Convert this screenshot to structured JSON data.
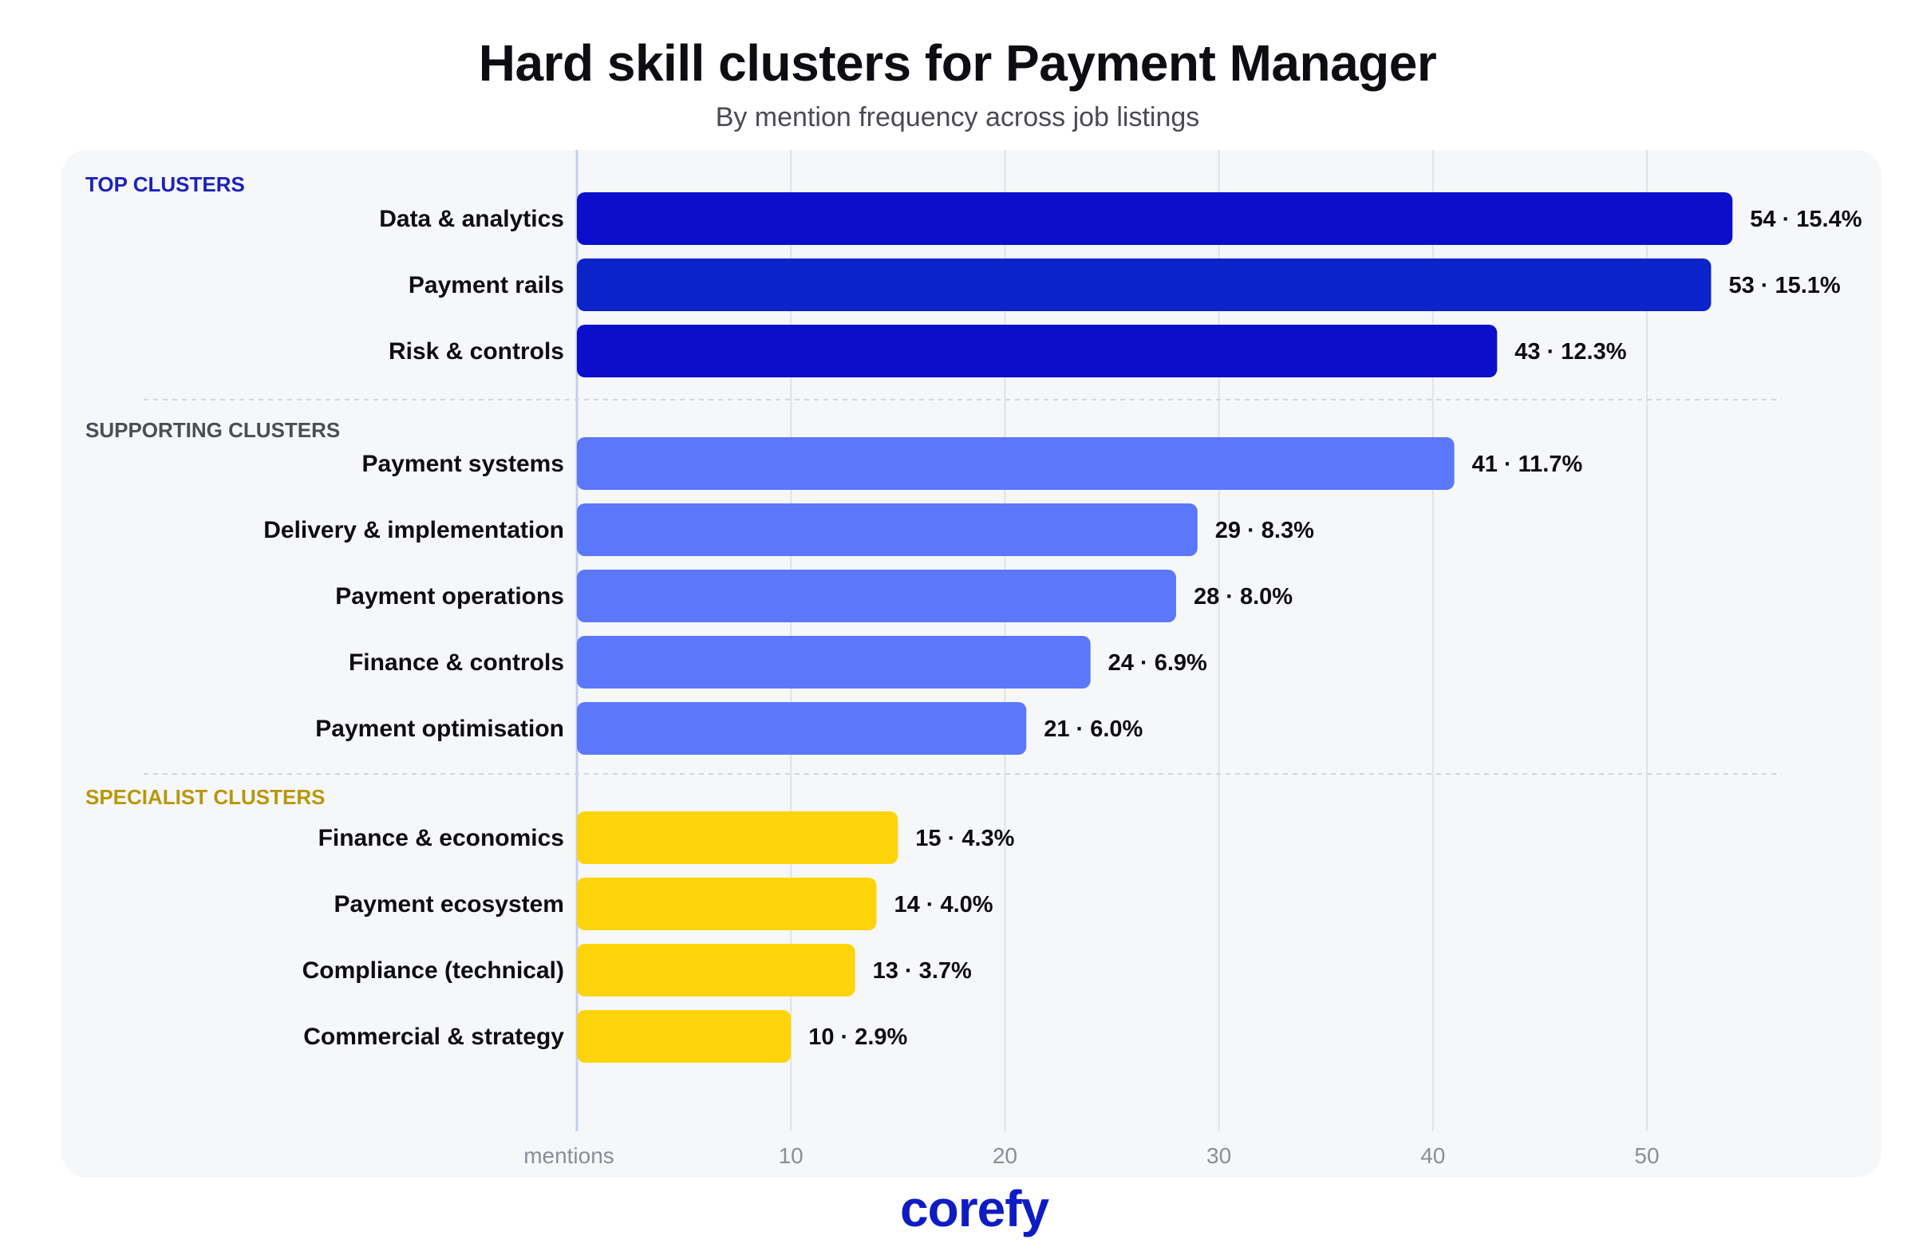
{
  "title": "Hard skill clusters for Payment Manager",
  "subtitle": "By mention frequency across job listings",
  "logo": "corefy",
  "colors": {
    "top": "#0b0fcb",
    "top_alt": "#0a24c9",
    "supporting": "#5b77fa",
    "specialist": "#fdd40a",
    "top_heading": "#1c22b8",
    "supporting_heading": "#4b4e57",
    "specialist_heading": "#b9970a"
  },
  "chart_data": {
    "type": "bar",
    "orientation": "horizontal",
    "x_axis_label": "mentions",
    "x_ticks": [
      10,
      20,
      30,
      40,
      50
    ],
    "xlim": [
      0,
      56
    ],
    "grid": true,
    "groups": [
      {
        "heading": "TOP CLUSTERS",
        "color_key": "top",
        "items": [
          {
            "label": "Data & analytics",
            "value": 54,
            "share": "15.4%",
            "value_label": "54 · 15.4%"
          },
          {
            "label": "Payment rails",
            "value": 53,
            "share": "15.1%",
            "value_label": "53 · 15.1%"
          },
          {
            "label": "Risk & controls",
            "value": 43,
            "share": "12.3%",
            "value_label": "43 · 12.3%"
          }
        ]
      },
      {
        "heading": "SUPPORTING CLUSTERS",
        "color_key": "supporting",
        "items": [
          {
            "label": "Payment systems",
            "value": 41,
            "share": "11.7%",
            "value_label": "41 · 11.7%"
          },
          {
            "label": "Delivery & implementation",
            "value": 29,
            "share": "8.3%",
            "value_label": "29 · 8.3%"
          },
          {
            "label": "Payment operations",
            "value": 28,
            "share": "8.0%",
            "value_label": "28 · 8.0%"
          },
          {
            "label": "Finance & controls",
            "value": 24,
            "share": "6.9%",
            "value_label": "24 · 6.9%"
          },
          {
            "label": "Payment optimisation",
            "value": 21,
            "share": "6.0%",
            "value_label": "21 · 6.0%"
          }
        ]
      },
      {
        "heading": "SPECIALIST CLUSTERS",
        "color_key": "specialist",
        "items": [
          {
            "label": "Finance & economics",
            "value": 15,
            "share": "4.3%",
            "value_label": "15 · 4.3%"
          },
          {
            "label": "Payment ecosystem",
            "value": 14,
            "share": "4.0%",
            "value_label": "14 · 4.0%"
          },
          {
            "label": "Compliance (technical)",
            "value": 13,
            "share": "3.7%",
            "value_label": "13 · 3.7%"
          },
          {
            "label": "Commercial & strategy",
            "value": 10,
            "share": "2.9%",
            "value_label": "10 · 2.9%"
          }
        ]
      }
    ]
  }
}
